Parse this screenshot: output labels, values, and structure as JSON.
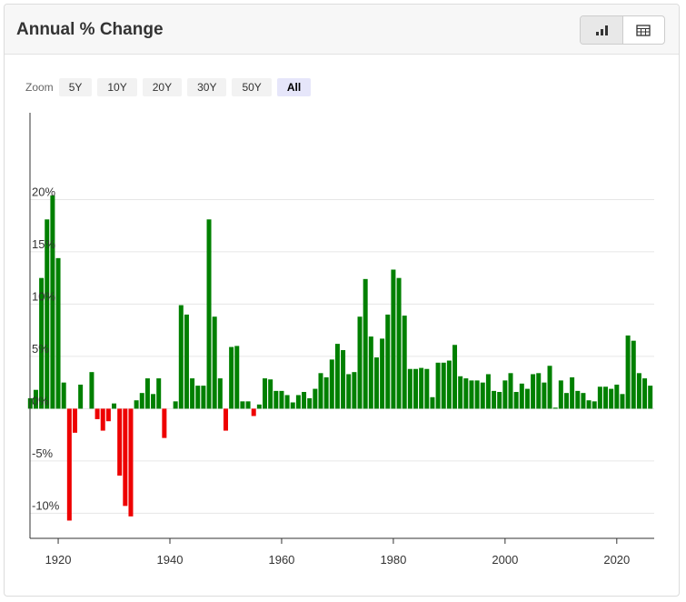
{
  "chart_data": {
    "type": "bar",
    "title": "Annual % Change",
    "x": [
      1915,
      1916,
      1917,
      1918,
      1919,
      1920,
      1921,
      1922,
      1923,
      1924,
      1925,
      1926,
      1927,
      1928,
      1929,
      1930,
      1931,
      1932,
      1933,
      1934,
      1935,
      1936,
      1937,
      1938,
      1939,
      1940,
      1941,
      1942,
      1943,
      1944,
      1945,
      1946,
      1947,
      1948,
      1949,
      1950,
      1951,
      1952,
      1953,
      1954,
      1955,
      1956,
      1957,
      1958,
      1959,
      1960,
      1961,
      1962,
      1963,
      1964,
      1965,
      1966,
      1967,
      1968,
      1969,
      1970,
      1971,
      1972,
      1973,
      1974,
      1975,
      1976,
      1977,
      1978,
      1979,
      1980,
      1981,
      1982,
      1983,
      1984,
      1985,
      1986,
      1987,
      1988,
      1989,
      1990,
      1991,
      1992,
      1993,
      1994,
      1995,
      1996,
      1997,
      1998,
      1999,
      2000,
      2001,
      2002,
      2003,
      2004,
      2005,
      2006,
      2007,
      2008,
      2009,
      2010,
      2011,
      2012,
      2013,
      2014,
      2015,
      2016,
      2017,
      2018,
      2019,
      2020,
      2021,
      2022,
      2023,
      2024,
      2025,
      2026
    ],
    "values": [
      1.0,
      1.8,
      12.5,
      18.1,
      20.4,
      14.4,
      2.5,
      -10.7,
      -2.3,
      2.3,
      0,
      3.5,
      -1.0,
      -2.1,
      -1.2,
      0.5,
      -6.4,
      -9.3,
      -10.3,
      0.8,
      1.5,
      2.9,
      1.4,
      2.9,
      -2.8,
      0,
      0.7,
      9.9,
      9.0,
      2.9,
      2.2,
      2.2,
      18.1,
      8.8,
      2.9,
      -2.1,
      5.9,
      6.0,
      0.7,
      0.7,
      -0.7,
      0.4,
      2.9,
      2.8,
      1.7,
      1.7,
      1.3,
      0.6,
      1.3,
      1.6,
      1.0,
      1.9,
      3.4,
      3.0,
      4.7,
      6.2,
      5.6,
      3.3,
      3.5,
      8.8,
      12.4,
      6.9,
      4.9,
      6.7,
      9.0,
      13.3,
      12.5,
      8.9,
      3.8,
      3.8,
      3.9,
      3.8,
      1.1,
      4.4,
      4.4,
      4.6,
      6.1,
      3.1,
      2.9,
      2.7,
      2.7,
      2.5,
      3.3,
      1.7,
      1.6,
      2.7,
      3.4,
      1.6,
      2.4,
      1.9,
      3.3,
      3.4,
      2.5,
      4.1,
      0.1,
      2.7,
      1.5,
      3.0,
      1.7,
      1.5,
      0.8,
      0.7,
      2.1,
      2.1,
      1.9,
      2.3,
      1.4,
      7.0,
      6.5,
      3.4,
      2.9,
      2.2
    ],
    "positive_color": "#008000",
    "negative_color": "#ee0000",
    "xlim": [
      1914.95,
      2026.7
    ],
    "xticks": [
      1920,
      1940,
      1960,
      1980,
      2000,
      2020
    ],
    "ylim": [
      -12.4,
      28.3
    ],
    "yticks": [
      {
        "value": -10,
        "label": "-10%"
      },
      {
        "value": -5,
        "label": "-5%"
      },
      {
        "value": 0,
        "label": "0%"
      },
      {
        "value": 5,
        "label": "5%"
      },
      {
        "value": 10,
        "label": "10%"
      },
      {
        "value": 15,
        "label": "15%"
      },
      {
        "value": 20,
        "label": "20%"
      }
    ],
    "grid": true
  },
  "zoom": {
    "label": "Zoom",
    "options": [
      "5Y",
      "10Y",
      "20Y",
      "30Y",
      "50Y",
      "All"
    ],
    "selected": "All"
  }
}
